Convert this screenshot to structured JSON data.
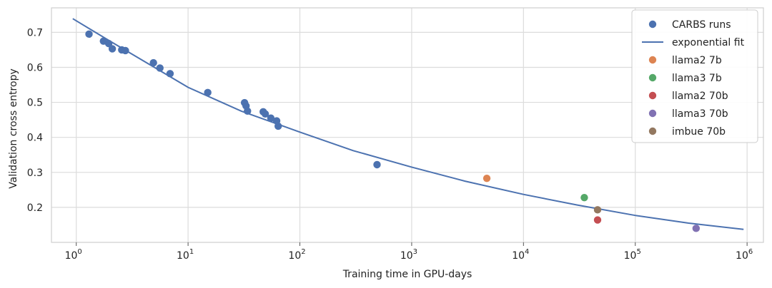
{
  "chart_data": {
    "type": "scatter",
    "xlabel": "Training time in GPU-days",
    "ylabel": "Validation cross entropy",
    "xscale": "log",
    "xlim": [
      0.6,
      1400000
    ],
    "ylim": [
      0.1,
      0.77
    ],
    "grid": true,
    "legend_position": "top-right",
    "x_ticks": [
      {
        "value": 1,
        "base": "10",
        "exp": "0"
      },
      {
        "value": 10,
        "base": "10",
        "exp": "1"
      },
      {
        "value": 100,
        "base": "10",
        "exp": "2"
      },
      {
        "value": 1000,
        "base": "10",
        "exp": "3"
      },
      {
        "value": 10000,
        "base": "10",
        "exp": "4"
      },
      {
        "value": 100000,
        "base": "10",
        "exp": "5"
      },
      {
        "value": 1000000,
        "base": "10",
        "exp": "6"
      }
    ],
    "y_ticks": [
      {
        "value": 0.2,
        "label": "0.2"
      },
      {
        "value": 0.3,
        "label": "0.3"
      },
      {
        "value": 0.4,
        "label": "0.4"
      },
      {
        "value": 0.5,
        "label": "0.5"
      },
      {
        "value": 0.6,
        "label": "0.6"
      },
      {
        "value": 0.7,
        "label": "0.7"
      }
    ],
    "series": [
      {
        "name": "CARBS runs",
        "kind": "scatter",
        "color": "#4c72b0",
        "points": [
          [
            1.3,
            0.695
          ],
          [
            1.75,
            0.675
          ],
          [
            1.95,
            0.668
          ],
          [
            2.1,
            0.653
          ],
          [
            2.55,
            0.65
          ],
          [
            2.75,
            0.648
          ],
          [
            4.9,
            0.613
          ],
          [
            5.6,
            0.598
          ],
          [
            6.9,
            0.582
          ],
          [
            15,
            0.528
          ],
          [
            32,
            0.499
          ],
          [
            33,
            0.49
          ],
          [
            34,
            0.475
          ],
          [
            47,
            0.473
          ],
          [
            49,
            0.467
          ],
          [
            55,
            0.455
          ],
          [
            62,
            0.447
          ],
          [
            64,
            0.432
          ],
          [
            490,
            0.322
          ]
        ]
      },
      {
        "name": "exponential fit",
        "kind": "line",
        "color": "#4c72b0",
        "points": [
          [
            0.93,
            0.739
          ],
          [
            2,
            0.675
          ],
          [
            5,
            0.6
          ],
          [
            10,
            0.543
          ],
          [
            30,
            0.475
          ],
          [
            100,
            0.415
          ],
          [
            300,
            0.362
          ],
          [
            1000,
            0.315
          ],
          [
            3000,
            0.275
          ],
          [
            10000,
            0.237
          ],
          [
            30000,
            0.207
          ],
          [
            100000,
            0.177
          ],
          [
            300000,
            0.155
          ],
          [
            930000,
            0.137
          ]
        ]
      },
      {
        "name": "llama2 7b",
        "kind": "scatter",
        "color": "#dd8452",
        "points": [
          [
            4700,
            0.283
          ]
        ]
      },
      {
        "name": "llama3 7b",
        "kind": "scatter",
        "color": "#55a868",
        "points": [
          [
            35000,
            0.228
          ]
        ]
      },
      {
        "name": "llama2 70b",
        "kind": "scatter",
        "color": "#c44e52",
        "points": [
          [
            46000,
            0.164
          ]
        ]
      },
      {
        "name": "llama3 70b",
        "kind": "scatter",
        "color": "#8172b3",
        "points": [
          [
            350000,
            0.14
          ]
        ]
      },
      {
        "name": "imbue 70b",
        "kind": "scatter",
        "color": "#937860",
        "points": [
          [
            46000,
            0.193
          ]
        ]
      }
    ]
  }
}
